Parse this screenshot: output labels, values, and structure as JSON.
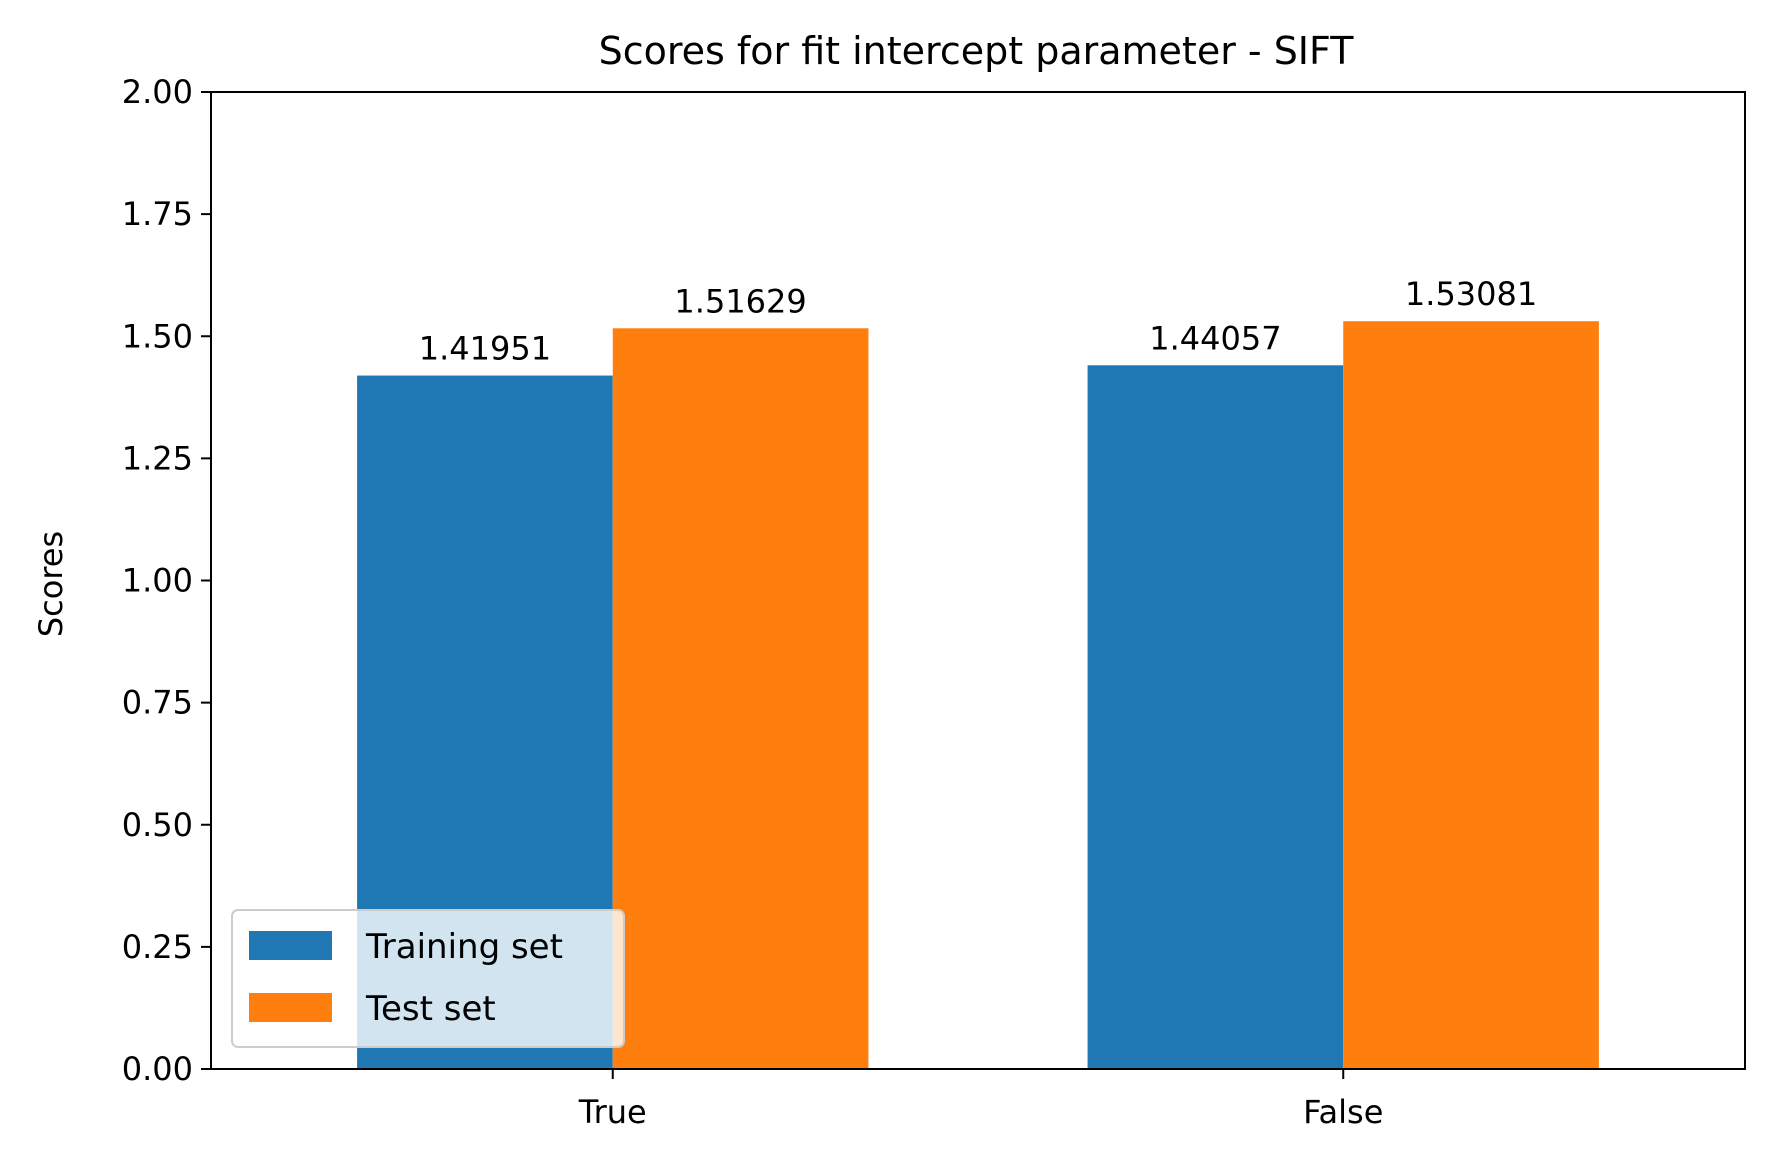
{
  "chart_data": {
    "type": "bar",
    "title": "Scores for fit intercept parameter - SIFT",
    "xlabel": "",
    "ylabel": "Scores",
    "categories": [
      "True",
      "False"
    ],
    "series": [
      {
        "name": "Training set",
        "values": [
          1.41951,
          1.44057
        ],
        "labels": [
          "1.41951",
          "1.44057"
        ],
        "color": "#1f77b4"
      },
      {
        "name": "Test set",
        "values": [
          1.51629,
          1.53081
        ],
        "labels": [
          "1.51629",
          "1.53081"
        ],
        "color": "#ff7f0e"
      }
    ],
    "ylim": [
      0,
      2.0
    ],
    "yticks": [
      0,
      0.25,
      0.5,
      0.75,
      1.0,
      1.25,
      1.5,
      1.75,
      2.0
    ],
    "ytick_labels": [
      "0.00",
      "0.25",
      "0.50",
      "0.75",
      "1.00",
      "1.25",
      "1.50",
      "1.75",
      "2.00"
    ],
    "grid": false,
    "legend_position": "lower-left"
  }
}
